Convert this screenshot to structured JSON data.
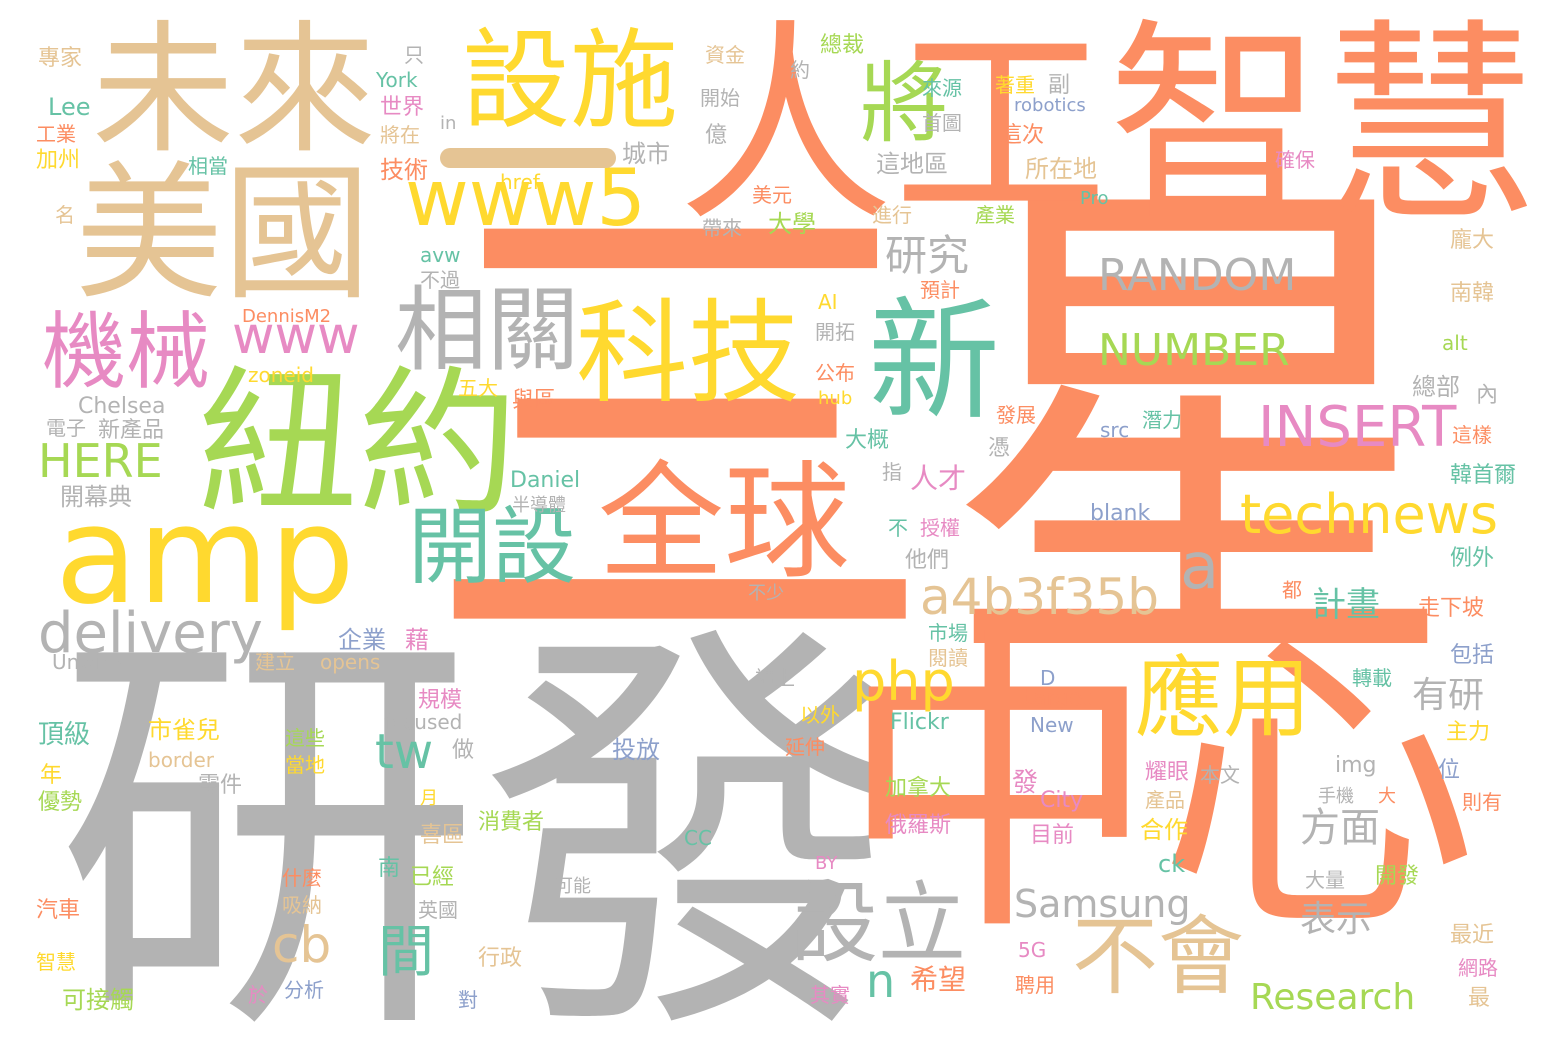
{
  "palette": {
    "orange": "#fc8d62",
    "gray": "#b3b3b3",
    "tan": "#e5c494",
    "green": "#a6d854",
    "yellow": "#ffd92f",
    "teal": "#66c2a5",
    "pink": "#e78ac3",
    "blue": "#8da0cb"
  },
  "words": [
    {
      "text": "三星",
      "color": "orange"
    },
    {
      "text": "研發",
      "color": "gray"
    },
    {
      "text": "中心",
      "color": "orange"
    },
    {
      "text": "人工智慧",
      "color": "orange"
    },
    {
      "text": "未來",
      "color": "tan"
    },
    {
      "text": "美國",
      "color": "tan"
    },
    {
      "text": "紐約",
      "color": "green"
    },
    {
      "text": "amp",
      "color": "yellow"
    },
    {
      "text": "全球",
      "color": "orange"
    },
    {
      "text": "設施",
      "color": "yellow"
    },
    {
      "text": "科技",
      "color": "yellow"
    },
    {
      "text": "新",
      "color": "teal"
    },
    {
      "text": "將",
      "color": "green"
    },
    {
      "text": "www5",
      "color": "yellow"
    },
    {
      "text": "相關",
      "color": "gray"
    },
    {
      "text": "機械",
      "color": "pink"
    },
    {
      "text": "開設",
      "color": "teal"
    },
    {
      "text": "應用",
      "color": "yellow"
    },
    {
      "text": "不會",
      "color": "tan"
    },
    {
      "text": "設立",
      "color": "gray"
    },
    {
      "text": "RANDOM",
      "color": "gray"
    },
    {
      "text": "NUMBER",
      "color": "green"
    },
    {
      "text": "INSERT",
      "color": "pink"
    },
    {
      "text": "technews",
      "color": "yellow"
    },
    {
      "text": "a4b3f35b",
      "color": "tan"
    },
    {
      "text": "delivery",
      "color": "gray"
    },
    {
      "text": "HERE",
      "color": "green"
    },
    {
      "text": "www",
      "color": "pink"
    },
    {
      "text": "php",
      "color": "yellow"
    },
    {
      "text": "a",
      "color": "gray"
    },
    {
      "text": "研究",
      "color": "gray"
    },
    {
      "text": "tw",
      "color": "teal"
    },
    {
      "text": "cb",
      "color": "tan"
    },
    {
      "text": "間",
      "color": "teal"
    },
    {
      "text": "n",
      "color": "teal"
    },
    {
      "text": "Samsung",
      "color": "gray"
    },
    {
      "text": "Research",
      "color": "green"
    },
    {
      "text": "方面",
      "color": "gray"
    },
    {
      "text": "有研",
      "color": "gray"
    },
    {
      "text": "計畫",
      "color": "teal"
    },
    {
      "text": "表示",
      "color": "gray"
    },
    {
      "text": "人才",
      "color": "pink"
    },
    {
      "text": "希望",
      "color": "orange"
    },
    {
      "text": "專家",
      "color": "tan"
    },
    {
      "text": "Lee",
      "color": "teal"
    },
    {
      "text": "工業",
      "color": "orange"
    },
    {
      "text": "加州",
      "color": "yellow"
    },
    {
      "text": "名",
      "color": "tan"
    },
    {
      "text": "Chelsea",
      "color": "gray"
    },
    {
      "text": "電子",
      "color": "gray"
    },
    {
      "text": "新產品",
      "color": "gray"
    },
    {
      "text": "開幕典",
      "color": "gray"
    },
    {
      "text": "Unwire",
      "color": "gray"
    },
    {
      "text": "頂級",
      "color": "teal"
    },
    {
      "text": "年",
      "color": "yellow"
    },
    {
      "text": "優勢",
      "color": "green"
    },
    {
      "text": "汽車",
      "color": "orange"
    },
    {
      "text": "智慧",
      "color": "yellow"
    },
    {
      "text": "可接觸",
      "color": "green"
    },
    {
      "text": "York",
      "color": "teal"
    },
    {
      "text": "只",
      "color": "gray"
    },
    {
      "text": "世界",
      "color": "pink"
    },
    {
      "text": "將在",
      "color": "tan"
    },
    {
      "text": "技術",
      "color": "orange"
    },
    {
      "text": "in",
      "color": "gray"
    },
    {
      "text": "相當",
      "color": "teal"
    },
    {
      "text": "城市",
      "color": "gray"
    },
    {
      "text": "href",
      "color": "yellow"
    },
    {
      "text": "資金",
      "color": "tan"
    },
    {
      "text": "開始",
      "color": "gray"
    },
    {
      "text": "億",
      "color": "gray"
    },
    {
      "text": "約",
      "color": "gray"
    },
    {
      "text": "總裁",
      "color": "green"
    },
    {
      "text": "來源",
      "color": "teal"
    },
    {
      "text": "首圖",
      "color": "gray"
    },
    {
      "text": "著重",
      "color": "yellow"
    },
    {
      "text": "robotics",
      "color": "blue"
    },
    {
      "text": "副",
      "color": "gray"
    },
    {
      "text": "這次",
      "color": "orange"
    },
    {
      "text": "這地區",
      "color": "gray"
    },
    {
      "text": "所在地",
      "color": "tan"
    },
    {
      "text": "美元",
      "color": "orange"
    },
    {
      "text": "帶來",
      "color": "gray"
    },
    {
      "text": "進行",
      "color": "tan"
    },
    {
      "text": "產業",
      "color": "green"
    },
    {
      "text": "大學",
      "color": "green"
    },
    {
      "text": "Pro",
      "color": "teal"
    },
    {
      "text": "確保",
      "color": "pink"
    },
    {
      "text": "龐大",
      "color": "tan"
    },
    {
      "text": "南韓",
      "color": "tan"
    },
    {
      "text": "alt",
      "color": "green"
    },
    {
      "text": "avw",
      "color": "teal"
    },
    {
      "text": "不過",
      "color": "gray"
    },
    {
      "text": "預計",
      "color": "orange"
    },
    {
      "text": "AI",
      "color": "yellow"
    },
    {
      "text": "DennisM2",
      "color": "orange"
    },
    {
      "text": "開拓",
      "color": "gray"
    },
    {
      "text": "公布",
      "color": "orange"
    },
    {
      "text": "hub",
      "color": "yellow"
    },
    {
      "text": "zoneid",
      "color": "yellow"
    },
    {
      "text": "五大",
      "color": "yellow"
    },
    {
      "text": "與區",
      "color": "orange"
    },
    {
      "text": "總部",
      "color": "gray"
    },
    {
      "text": "內",
      "color": "gray"
    },
    {
      "text": "潛力",
      "color": "teal"
    },
    {
      "text": "這樣",
      "color": "orange"
    },
    {
      "text": "src",
      "color": "blue"
    },
    {
      "text": "發展",
      "color": "orange"
    },
    {
      "text": "憑",
      "color": "gray"
    },
    {
      "text": "大概",
      "color": "teal"
    },
    {
      "text": "韓首爾",
      "color": "teal"
    },
    {
      "text": "指",
      "color": "gray"
    },
    {
      "text": "Daniel",
      "color": "teal"
    },
    {
      "text": "半導體",
      "color": "gray"
    },
    {
      "text": "blank",
      "color": "blue"
    },
    {
      "text": "不",
      "color": "teal"
    },
    {
      "text": "授權",
      "color": "pink"
    },
    {
      "text": "他們",
      "color": "gray"
    },
    {
      "text": "例外",
      "color": "teal"
    },
    {
      "text": "不少",
      "color": "gray"
    },
    {
      "text": "都",
      "color": "orange"
    },
    {
      "text": "走下坡",
      "color": "orange"
    },
    {
      "text": "企業",
      "color": "blue"
    },
    {
      "text": "藉",
      "color": "pink"
    },
    {
      "text": "市場",
      "color": "teal"
    },
    {
      "text": "閱讀",
      "color": "tan"
    },
    {
      "text": "opens",
      "color": "tan"
    },
    {
      "text": "建立",
      "color": "tan"
    },
    {
      "text": "包括",
      "color": "blue"
    },
    {
      "text": "D",
      "color": "blue"
    },
    {
      "text": "禮上",
      "color": "gray"
    },
    {
      "text": "轉載",
      "color": "teal"
    },
    {
      "text": "規模",
      "color": "pink"
    },
    {
      "text": "target",
      "color": "orange"
    },
    {
      "text": "以外",
      "color": "yellow"
    },
    {
      "text": "Flickr",
      "color": "teal"
    },
    {
      "text": "New",
      "color": "blue"
    },
    {
      "text": "主力",
      "color": "yellow"
    },
    {
      "text": "focused",
      "color": "gray"
    },
    {
      "text": "市雀兒",
      "color": "yellow"
    },
    {
      "text": "這些",
      "color": "green"
    },
    {
      "text": "當地",
      "color": "yellow"
    },
    {
      "text": "做",
      "color": "gray"
    },
    {
      "text": "border",
      "color": "tan"
    },
    {
      "text": "延伸",
      "color": "orange"
    },
    {
      "text": "投放",
      "color": "blue"
    },
    {
      "text": "零件",
      "color": "gray"
    },
    {
      "text": "img",
      "color": "gray"
    },
    {
      "text": "位",
      "color": "blue"
    },
    {
      "text": "耀眼",
      "color": "pink"
    },
    {
      "text": "本文",
      "color": "gray"
    },
    {
      "text": "加拿大",
      "color": "green"
    },
    {
      "text": "手機",
      "color": "gray"
    },
    {
      "text": "大",
      "color": "orange"
    },
    {
      "text": "則有",
      "color": "orange"
    },
    {
      "text": "發",
      "color": "pink"
    },
    {
      "text": "City",
      "color": "pink"
    },
    {
      "text": "產品",
      "color": "tan"
    },
    {
      "text": "俄羅斯",
      "color": "pink"
    },
    {
      "text": "月",
      "color": "yellow"
    },
    {
      "text": "喜區",
      "color": "tan"
    },
    {
      "text": "消費者",
      "color": "green"
    },
    {
      "text": "目前",
      "color": "pink"
    },
    {
      "text": "合作",
      "color": "yellow"
    },
    {
      "text": "CC",
      "color": "teal"
    },
    {
      "text": "BY",
      "color": "pink"
    },
    {
      "text": "南",
      "color": "teal"
    },
    {
      "text": "已經",
      "color": "green"
    },
    {
      "text": "ck",
      "color": "teal"
    },
    {
      "text": "大量",
      "color": "gray"
    },
    {
      "text": "開發",
      "color": "green"
    },
    {
      "text": "什麼",
      "color": "orange"
    },
    {
      "text": "吸納",
      "color": "tan"
    },
    {
      "text": "可能",
      "color": "gray"
    },
    {
      "text": "英國",
      "color": "gray"
    },
    {
      "text": "最近",
      "color": "tan"
    },
    {
      "text": "網路",
      "color": "pink"
    },
    {
      "text": "最",
      "color": "tan"
    },
    {
      "text": "行政",
      "color": "tan"
    },
    {
      "text": "5G",
      "color": "pink"
    },
    {
      "text": "聘用",
      "color": "orange"
    },
    {
      "text": "對",
      "color": "blue"
    },
    {
      "text": "其實",
      "color": "pink"
    },
    {
      "text": "於",
      "color": "pink"
    },
    {
      "text": "分析",
      "color": "blue"
    }
  ]
}
